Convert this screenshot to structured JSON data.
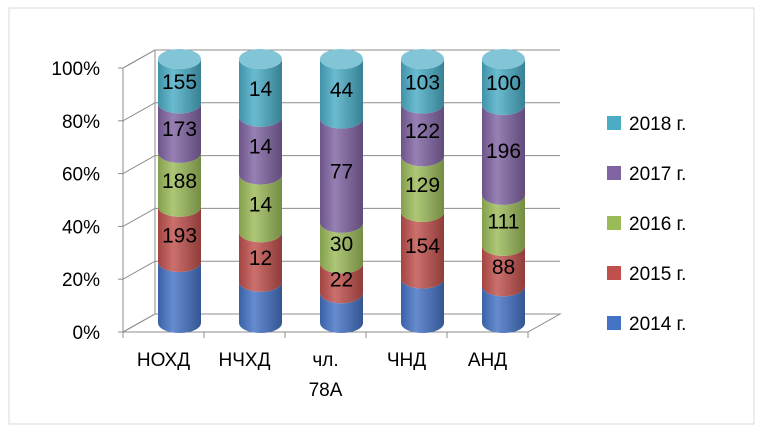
{
  "chart_data": {
    "type": "bar",
    "stacked": "percent",
    "style": "3d-cylinder",
    "categories": [
      "НОХД",
      "НЧХД",
      "чл. 78А",
      "ЧНД",
      "АНД"
    ],
    "series": [
      {
        "name": "2014 г.",
        "color": "#4472C4",
        "values": [
          213,
          10,
          22,
          103,
          80
        ],
        "labels": [
          "",
          "",
          "",
          "",
          ""
        ]
      },
      {
        "name": "2015 г.",
        "color": "#C0504D",
        "values": [
          193,
          12,
          22,
          154,
          88
        ],
        "labels": [
          "193",
          "12",
          "22",
          "154",
          "88"
        ]
      },
      {
        "name": "2016 г.",
        "color": "#9BBB59",
        "values": [
          188,
          14,
          30,
          129,
          111
        ],
        "labels": [
          "188",
          "14",
          "30",
          "129",
          "111"
        ]
      },
      {
        "name": "2017 г.",
        "color": "#8064A2",
        "values": [
          173,
          14,
          77,
          122,
          196
        ],
        "labels": [
          "173",
          "14",
          "77",
          "122",
          "196"
        ]
      },
      {
        "name": "2018 г.",
        "color": "#4BACC6",
        "values": [
          155,
          14,
          44,
          103,
          100
        ],
        "labels": [
          "155",
          "14",
          "44",
          "103",
          "100"
        ]
      }
    ],
    "y_ticks": [
      "0%",
      "20%",
      "40%",
      "60%",
      "80%",
      "100%"
    ],
    "ylim": [
      0,
      1
    ],
    "legend_position": "right",
    "grid": true
  }
}
